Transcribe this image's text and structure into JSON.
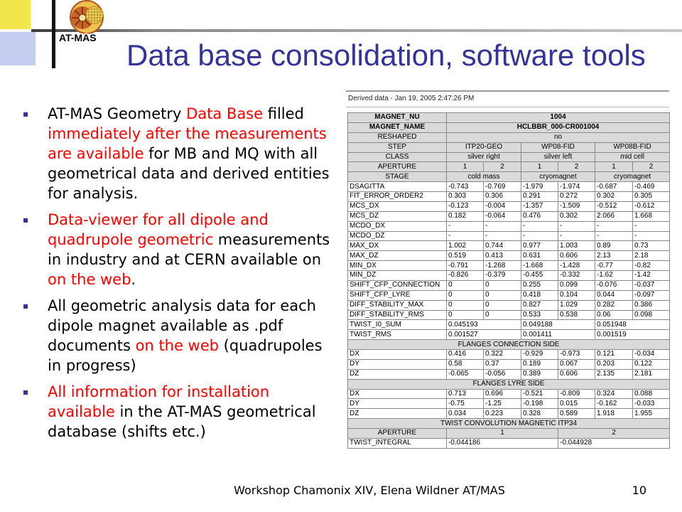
{
  "slide": {
    "title": "Data base consolidation, software tools",
    "logo_text": "AT-MAS",
    "footer": "Workshop Chamonix XIV, Elena Wildner AT/MAS",
    "page_number": "10"
  },
  "colors": {
    "title": "#333399",
    "highlight": "#ff0000",
    "bullet": "#333399",
    "table_header_bg": "#dadada",
    "decor_yellow": "#f2e64c",
    "decor_blue": "#c4ccef"
  },
  "bullets": [
    {
      "lines": [
        [
          {
            "t": "AT-MAS Geometry ",
            "hl": false
          },
          {
            "t": "Data Base",
            "hl": true
          },
          {
            "t": " filled",
            "hl": false
          }
        ],
        [
          {
            "t": "immediately after the measurements",
            "hl": true
          }
        ],
        [
          {
            "t": "are available",
            "hl": true
          },
          {
            "t": " for MB and MQ with all",
            "hl": false
          }
        ],
        [
          {
            "t": "geometrical data and derived entities",
            "hl": false
          }
        ],
        [
          {
            "t": "for analysis.",
            "hl": false
          }
        ]
      ]
    },
    {
      "lines": [
        [
          {
            "t": "Data-viewer for all dipole and",
            "hl": true
          }
        ],
        [
          {
            "t": "quadrupole geometric",
            "hl": true
          },
          {
            "t": " measurements",
            "hl": false
          }
        ],
        [
          {
            "t": "in industry and at CERN available on",
            "hl": false
          }
        ],
        [
          {
            "t": "on the web",
            "hl": true
          },
          {
            "t": ".",
            "hl": false
          }
        ]
      ]
    },
    {
      "lines": [
        [
          {
            "t": "All geometric analysis data for each",
            "hl": false
          }
        ],
        [
          {
            "t": "dipole magnet available as .pdf",
            "hl": false
          }
        ],
        [
          {
            "t": "documents ",
            "hl": false
          },
          {
            "t": "on the web",
            "hl": true
          },
          {
            "t": " (quadrupoles",
            "hl": false
          }
        ],
        [
          {
            "t": "in progress)",
            "hl": false
          }
        ]
      ]
    },
    {
      "lines": [
        [
          {
            "t": "All information for installation",
            "hl": true
          }
        ],
        [
          {
            "t": "available",
            "hl": true
          },
          {
            "t": " in the AT-MAS geometrical",
            "hl": false
          }
        ],
        [
          {
            "t": "database (shifts etc.)",
            "hl": false
          }
        ]
      ]
    }
  ],
  "data_table": {
    "caption": "Derived data - Jan 19, 2005 2:47:26 PM",
    "rows": [
      {
        "kind": "title",
        "cells": [
          {
            "t": "MAGNET_NU"
          },
          {
            "t": "1004",
            "span": 6
          }
        ]
      },
      {
        "kind": "title",
        "cells": [
          {
            "t": "MAGNET_NAME"
          },
          {
            "t": "HCLBBR_000-CR001004",
            "span": 6
          }
        ]
      },
      {
        "kind": "header",
        "cells": [
          {
            "t": "RESHAPED"
          },
          {
            "t": "no",
            "span": 6
          }
        ]
      },
      {
        "kind": "header",
        "cells": [
          {
            "t": "STEP"
          },
          {
            "t": "ITP20-GEO",
            "span": 2
          },
          {
            "t": "WP08-FID",
            "span": 2
          },
          {
            "t": "WP08B-FID",
            "span": 2
          }
        ]
      },
      {
        "kind": "header",
        "cells": [
          {
            "t": "CLASS"
          },
          {
            "t": "silver right",
            "span": 2
          },
          {
            "t": "silver left",
            "span": 2
          },
          {
            "t": "mid cell",
            "span": 2
          }
        ]
      },
      {
        "kind": "header",
        "cells": [
          {
            "t": "APERTURE"
          },
          {
            "t": "1"
          },
          {
            "t": "2"
          },
          {
            "t": "1"
          },
          {
            "t": "2"
          },
          {
            "t": "1"
          },
          {
            "t": "2"
          }
        ]
      },
      {
        "kind": "header",
        "cells": [
          {
            "t": "STAGE"
          },
          {
            "t": "cold mass",
            "span": 2
          },
          {
            "t": "cryomagnet",
            "span": 2
          },
          {
            "t": "cryomagnet",
            "span": 2
          }
        ]
      },
      {
        "kind": "data",
        "cells": [
          {
            "t": "DSAGITTA"
          },
          {
            "t": "-0.743"
          },
          {
            "t": "-0.769"
          },
          {
            "t": "-1.979"
          },
          {
            "t": "-1.974"
          },
          {
            "t": "-0.687"
          },
          {
            "t": "-0.469"
          }
        ]
      },
      {
        "kind": "data",
        "cells": [
          {
            "t": "FIT_ERROR_ORDER2"
          },
          {
            "t": "0.303"
          },
          {
            "t": "0.306"
          },
          {
            "t": "0.291"
          },
          {
            "t": "0.272"
          },
          {
            "t": "0.302"
          },
          {
            "t": "0.305"
          }
        ]
      },
      {
        "kind": "data",
        "cells": [
          {
            "t": "MCS_DX"
          },
          {
            "t": "-0.123"
          },
          {
            "t": "-0.004"
          },
          {
            "t": "-1.357"
          },
          {
            "t": "-1.509"
          },
          {
            "t": "-0.512"
          },
          {
            "t": "-0.612"
          }
        ]
      },
      {
        "kind": "data",
        "cells": [
          {
            "t": "MCS_DZ"
          },
          {
            "t": "0.182"
          },
          {
            "t": "-0.064"
          },
          {
            "t": "0.476"
          },
          {
            "t": "0.302"
          },
          {
            "t": "2.066"
          },
          {
            "t": "1.668"
          }
        ]
      },
      {
        "kind": "data",
        "cells": [
          {
            "t": "MCDO_DX"
          },
          {
            "t": "-"
          },
          {
            "t": "-"
          },
          {
            "t": "-"
          },
          {
            "t": "-"
          },
          {
            "t": "-"
          },
          {
            "t": "-"
          }
        ]
      },
      {
        "kind": "data",
        "cells": [
          {
            "t": "MCDO_DZ"
          },
          {
            "t": "-"
          },
          {
            "t": "-"
          },
          {
            "t": "-"
          },
          {
            "t": "-"
          },
          {
            "t": "-"
          },
          {
            "t": "-"
          }
        ]
      },
      {
        "kind": "data",
        "cells": [
          {
            "t": "MAX_DX"
          },
          {
            "t": "1.002"
          },
          {
            "t": "0.744"
          },
          {
            "t": "0.977"
          },
          {
            "t": "1.003"
          },
          {
            "t": "0.89"
          },
          {
            "t": "0.73"
          }
        ]
      },
      {
        "kind": "data",
        "cells": [
          {
            "t": "MAX_DZ"
          },
          {
            "t": "0.519"
          },
          {
            "t": "0.413"
          },
          {
            "t": "0.631"
          },
          {
            "t": "0.606"
          },
          {
            "t": "2.13"
          },
          {
            "t": "2.18"
          }
        ]
      },
      {
        "kind": "data",
        "cells": [
          {
            "t": "MIN_DX"
          },
          {
            "t": "-0.791"
          },
          {
            "t": "-1.268"
          },
          {
            "t": "-1.668"
          },
          {
            "t": "-1.428"
          },
          {
            "t": "-0.77"
          },
          {
            "t": "-0.82"
          }
        ]
      },
      {
        "kind": "data",
        "cells": [
          {
            "t": "MIN_DZ"
          },
          {
            "t": "-0.826"
          },
          {
            "t": "-0.379"
          },
          {
            "t": "-0.455"
          },
          {
            "t": "-0.332"
          },
          {
            "t": "-1.62"
          },
          {
            "t": "-1.42"
          }
        ]
      },
      {
        "kind": "data",
        "cells": [
          {
            "t": "SHIFT_CFP_CONNECTION"
          },
          {
            "t": "0"
          },
          {
            "t": "0"
          },
          {
            "t": "0.255"
          },
          {
            "t": "0.099"
          },
          {
            "t": "-0.076"
          },
          {
            "t": "-0.037"
          }
        ]
      },
      {
        "kind": "data",
        "cells": [
          {
            "t": "SHIFT_CFP_LYRE"
          },
          {
            "t": "0"
          },
          {
            "t": "0"
          },
          {
            "t": "0.418"
          },
          {
            "t": "0.104"
          },
          {
            "t": "0.044"
          },
          {
            "t": "-0.097"
          }
        ]
      },
      {
        "kind": "data",
        "cells": [
          {
            "t": "DIFF_STABILITY_MAX"
          },
          {
            "t": "0"
          },
          {
            "t": "0"
          },
          {
            "t": "0.827"
          },
          {
            "t": "1.029"
          },
          {
            "t": "0.282"
          },
          {
            "t": "0.386"
          }
        ]
      },
      {
        "kind": "data",
        "cells": [
          {
            "t": "DIFF_STABILITY_RMS"
          },
          {
            "t": "0"
          },
          {
            "t": "0"
          },
          {
            "t": "0.533"
          },
          {
            "t": "0.538"
          },
          {
            "t": "0.06"
          },
          {
            "t": "0.098"
          }
        ]
      },
      {
        "kind": "data",
        "cells": [
          {
            "t": "TWIST_I0_SUM"
          },
          {
            "t": "0.045193",
            "span": 2
          },
          {
            "t": "0.049188",
            "span": 2
          },
          {
            "t": "0.051948",
            "span": 2
          }
        ]
      },
      {
        "kind": "data",
        "cells": [
          {
            "t": "TWIST_RMS"
          },
          {
            "t": "0.001527",
            "span": 2
          },
          {
            "t": "0.001411",
            "span": 2
          },
          {
            "t": "0.001519",
            "span": 2
          }
        ]
      },
      {
        "kind": "section",
        "cells": [
          {
            "t": "FLANGES CONNECTION SIDE",
            "span": 7
          }
        ]
      },
      {
        "kind": "data",
        "cells": [
          {
            "t": "DX"
          },
          {
            "t": "0.416"
          },
          {
            "t": "0.322"
          },
          {
            "t": "-0.929"
          },
          {
            "t": "-0.973"
          },
          {
            "t": "0.121"
          },
          {
            "t": "-0.034"
          }
        ]
      },
      {
        "kind": "data",
        "cells": [
          {
            "t": "DY"
          },
          {
            "t": "0.58"
          },
          {
            "t": "0.37"
          },
          {
            "t": "0.189"
          },
          {
            "t": "0.067"
          },
          {
            "t": "0.203"
          },
          {
            "t": "0.122"
          }
        ]
      },
      {
        "kind": "data",
        "cells": [
          {
            "t": "DZ"
          },
          {
            "t": "-0.065"
          },
          {
            "t": "-0.056"
          },
          {
            "t": "0.389"
          },
          {
            "t": "0.606"
          },
          {
            "t": "2.135"
          },
          {
            "t": "2.181"
          }
        ]
      },
      {
        "kind": "section",
        "cells": [
          {
            "t": "FLANGES LYRE SIDE",
            "span": 7
          }
        ]
      },
      {
        "kind": "data",
        "cells": [
          {
            "t": "DX"
          },
          {
            "t": "0.713"
          },
          {
            "t": "0.696"
          },
          {
            "t": "-0.521"
          },
          {
            "t": "-0.809"
          },
          {
            "t": "0.324"
          },
          {
            "t": "0.088"
          }
        ]
      },
      {
        "kind": "data",
        "cells": [
          {
            "t": "DY"
          },
          {
            "t": "-0.75"
          },
          {
            "t": "-1.25"
          },
          {
            "t": "-0.198"
          },
          {
            "t": "0.015"
          },
          {
            "t": "-0.162"
          },
          {
            "t": "-0.033"
          }
        ]
      },
      {
        "kind": "data",
        "cells": [
          {
            "t": "DZ"
          },
          {
            "t": "0.034"
          },
          {
            "t": "0.223"
          },
          {
            "t": "0.328"
          },
          {
            "t": "0.589"
          },
          {
            "t": "1.918"
          },
          {
            "t": "1.955"
          }
        ]
      },
      {
        "kind": "section",
        "cells": [
          {
            "t": "TWIST CONVOLUTION MAGNETIC ITP34",
            "span": 7
          }
        ]
      },
      {
        "kind": "header",
        "cells": [
          {
            "t": "APERTURE"
          },
          {
            "t": "1",
            "span": 3
          },
          {
            "t": "2",
            "span": 3
          }
        ]
      },
      {
        "kind": "data",
        "cells": [
          {
            "t": "TWIST_INTEGRAL"
          },
          {
            "t": "-0.044186",
            "span": 3
          },
          {
            "t": "-0.044928",
            "span": 3
          }
        ]
      }
    ]
  }
}
